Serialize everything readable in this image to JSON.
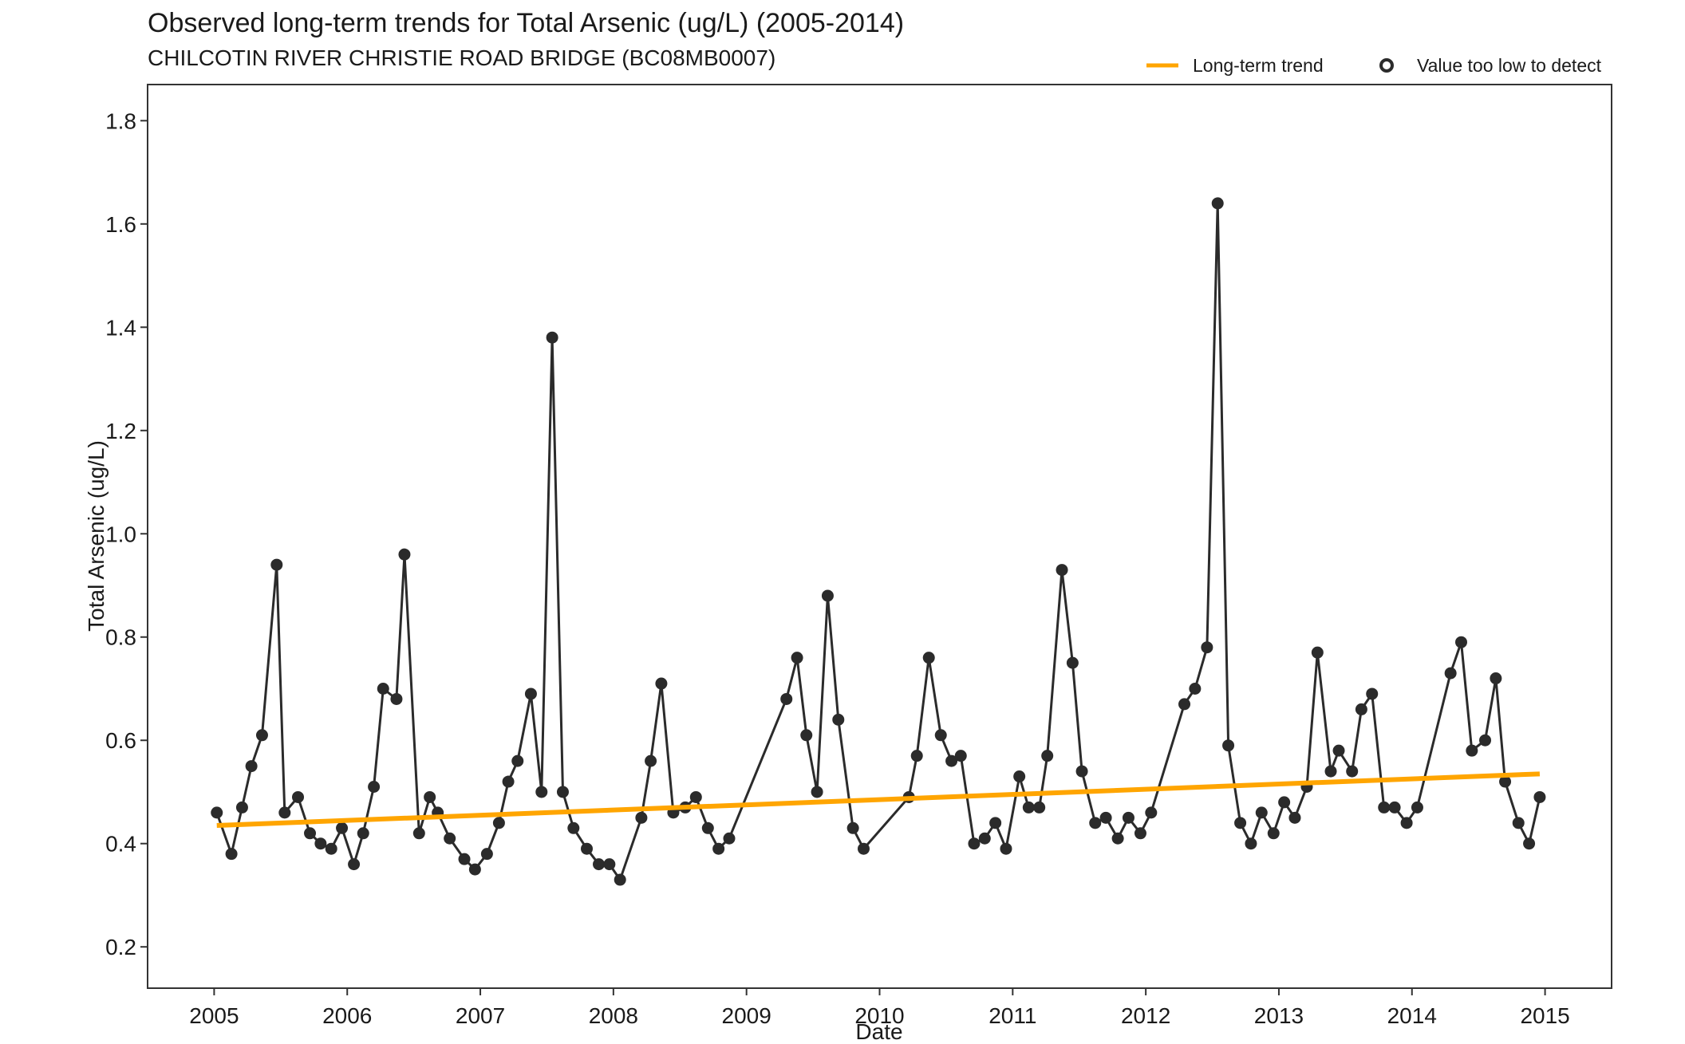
{
  "chart_data": {
    "type": "line",
    "title": "Observed long-term trends for Total Arsenic (ug/L) (2005-2014)",
    "subtitle": "CHILCOTIN RIVER CHRISTIE ROAD BRIDGE (BC08MB0007)",
    "xlabel": "Date",
    "ylabel": "Total Arsenic (ug/L)",
    "xlim": [
      2004.5,
      2015.5
    ],
    "ylim": [
      0.12,
      1.87
    ],
    "xticks": [
      2005,
      2006,
      2007,
      2008,
      2009,
      2010,
      2011,
      2012,
      2013,
      2014,
      2015
    ],
    "yticks": [
      0.2,
      0.4,
      0.6,
      0.8,
      1.0,
      1.2,
      1.4,
      1.6,
      1.8
    ],
    "ytick_labels": [
      "0.2",
      "0.4",
      "0.6",
      "0.8",
      "1.0",
      "1.2",
      "1.4",
      "1.6",
      "1.8"
    ],
    "grid": false,
    "legend_position": "top-right",
    "colors": {
      "series": "#2b2b2b",
      "trend": "#ffa500",
      "frame": "#333333"
    },
    "series": [
      {
        "name": "Observed",
        "type": "line+points",
        "points": [
          [
            2005.02,
            0.46
          ],
          [
            2005.13,
            0.38
          ],
          [
            2005.21,
            0.47
          ],
          [
            2005.28,
            0.55
          ],
          [
            2005.36,
            0.61
          ],
          [
            2005.47,
            0.94
          ],
          [
            2005.53,
            0.46
          ],
          [
            2005.63,
            0.49
          ],
          [
            2005.72,
            0.42
          ],
          [
            2005.8,
            0.4
          ],
          [
            2005.88,
            0.39
          ],
          [
            2005.96,
            0.43
          ],
          [
            2006.05,
            0.36
          ],
          [
            2006.12,
            0.42
          ],
          [
            2006.2,
            0.51
          ],
          [
            2006.27,
            0.7
          ],
          [
            2006.37,
            0.68
          ],
          [
            2006.43,
            0.96
          ],
          [
            2006.54,
            0.42
          ],
          [
            2006.62,
            0.49
          ],
          [
            2006.68,
            0.46
          ],
          [
            2006.77,
            0.41
          ],
          [
            2006.88,
            0.37
          ],
          [
            2006.96,
            0.35
          ],
          [
            2007.05,
            0.38
          ],
          [
            2007.14,
            0.44
          ],
          [
            2007.21,
            0.52
          ],
          [
            2007.28,
            0.56
          ],
          [
            2007.38,
            0.69
          ],
          [
            2007.46,
            0.5
          ],
          [
            2007.54,
            1.38
          ],
          [
            2007.62,
            0.5
          ],
          [
            2007.7,
            0.43
          ],
          [
            2007.8,
            0.39
          ],
          [
            2007.89,
            0.36
          ],
          [
            2007.97,
            0.36
          ],
          [
            2008.05,
            0.33
          ],
          [
            2008.21,
            0.45
          ],
          [
            2008.28,
            0.56
          ],
          [
            2008.36,
            0.71
          ],
          [
            2008.45,
            0.46
          ],
          [
            2008.54,
            0.47
          ],
          [
            2008.62,
            0.49
          ],
          [
            2008.71,
            0.43
          ],
          [
            2008.79,
            0.39
          ],
          [
            2008.87,
            0.41
          ],
          [
            2009.3,
            0.68
          ],
          [
            2009.38,
            0.76
          ],
          [
            2009.45,
            0.61
          ],
          [
            2009.53,
            0.5
          ],
          [
            2009.61,
            0.88
          ],
          [
            2009.69,
            0.64
          ],
          [
            2009.8,
            0.43
          ],
          [
            2009.88,
            0.39
          ],
          [
            2010.22,
            0.49
          ],
          [
            2010.28,
            0.57
          ],
          [
            2010.37,
            0.76
          ],
          [
            2010.46,
            0.61
          ],
          [
            2010.54,
            0.56
          ],
          [
            2010.61,
            0.57
          ],
          [
            2010.71,
            0.4
          ],
          [
            2010.79,
            0.41
          ],
          [
            2010.87,
            0.44
          ],
          [
            2010.95,
            0.39
          ],
          [
            2011.05,
            0.53
          ],
          [
            2011.12,
            0.47
          ],
          [
            2011.2,
            0.47
          ],
          [
            2011.26,
            0.57
          ],
          [
            2011.37,
            0.93
          ],
          [
            2011.45,
            0.75
          ],
          [
            2011.52,
            0.54
          ],
          [
            2011.62,
            0.44
          ],
          [
            2011.7,
            0.45
          ],
          [
            2011.79,
            0.41
          ],
          [
            2011.87,
            0.45
          ],
          [
            2011.96,
            0.42
          ],
          [
            2012.04,
            0.46
          ],
          [
            2012.29,
            0.67
          ],
          [
            2012.37,
            0.7
          ],
          [
            2012.46,
            0.78
          ],
          [
            2012.54,
            1.64
          ],
          [
            2012.62,
            0.59
          ],
          [
            2012.71,
            0.44
          ],
          [
            2012.79,
            0.4
          ],
          [
            2012.87,
            0.46
          ],
          [
            2012.96,
            0.42
          ],
          [
            2013.04,
            0.48
          ],
          [
            2013.12,
            0.45
          ],
          [
            2013.21,
            0.51
          ],
          [
            2013.29,
            0.77
          ],
          [
            2013.39,
            0.54
          ],
          [
            2013.45,
            0.58
          ],
          [
            2013.55,
            0.54
          ],
          [
            2013.62,
            0.66
          ],
          [
            2013.7,
            0.69
          ],
          [
            2013.79,
            0.47
          ],
          [
            2013.87,
            0.47
          ],
          [
            2013.96,
            0.44
          ],
          [
            2014.04,
            0.47
          ],
          [
            2014.29,
            0.73
          ],
          [
            2014.37,
            0.79
          ],
          [
            2014.45,
            0.58
          ],
          [
            2014.55,
            0.6
          ],
          [
            2014.63,
            0.72
          ],
          [
            2014.7,
            0.52
          ],
          [
            2014.8,
            0.44
          ],
          [
            2014.88,
            0.4
          ],
          [
            2014.96,
            0.49
          ]
        ]
      }
    ],
    "trend": {
      "name": "Long-term trend",
      "x": [
        2005.02,
        2014.96
      ],
      "y": [
        0.435,
        0.535
      ]
    },
    "legend": [
      {
        "label": "Long-term trend",
        "symbol": "line"
      },
      {
        "label": "Value too low to detect",
        "symbol": "open-circle"
      }
    ]
  }
}
